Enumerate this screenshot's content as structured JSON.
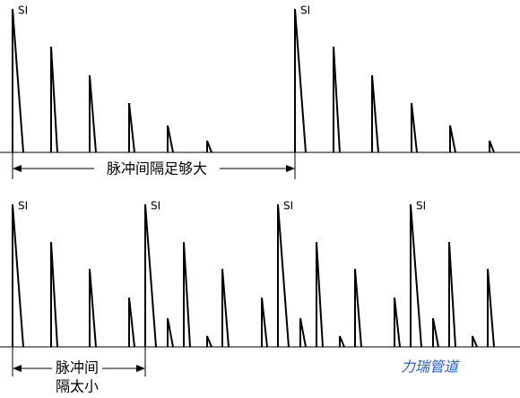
{
  "top_panel": {
    "pulse_labels": [
      "SI",
      "SI"
    ],
    "interval_label": "脉冲间隔足够大"
  },
  "bottom_panel": {
    "pulse_labels": [
      "SI",
      "SI",
      "SI",
      "SI"
    ],
    "interval_label": [
      "脉冲间",
      "隔太小"
    ]
  },
  "watermark": "力瑞管道"
}
